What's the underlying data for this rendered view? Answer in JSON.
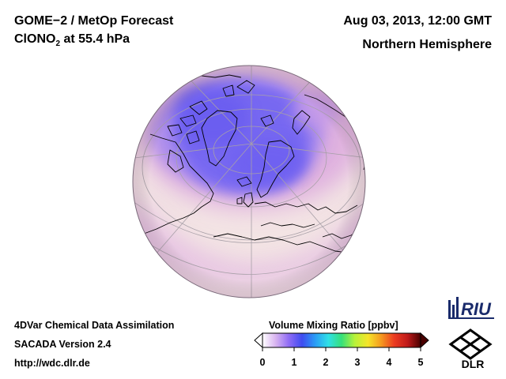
{
  "header": {
    "title": "GOME−2 / MetOp Forecast",
    "species_main": "ClONO",
    "species_sub": "2",
    "species_level": " at 55.4 hPa",
    "datetime": "Aug 03, 2013, 12:00 GMT",
    "region": "Northern Hemisphere"
  },
  "footer": {
    "line1": "4DVar Chemical Data Assimilation",
    "line2": "SACADA Version 2.4",
    "url": "http://wdc.dlr.de"
  },
  "colorbar": {
    "title": "Volume Mixing Ratio [ppbv]",
    "ticks": [
      "0",
      "1",
      "2",
      "3",
      "4",
      "5"
    ],
    "min": 0,
    "max": 5,
    "colors": [
      "#ffffff",
      "#d8b4f0",
      "#8f6cf5",
      "#3f4cf0",
      "#2a9cf5",
      "#2fe0e6",
      "#36e07a",
      "#b7f23a",
      "#f5e52a",
      "#f59a1f",
      "#ec3b20",
      "#c01a1a",
      "#4a0000"
    ]
  },
  "logos": {
    "riu": "RIU",
    "dlr": "DLR"
  },
  "map": {
    "projection": "orthographic",
    "background_color": "#f3e4e4",
    "low_color": "#7a6ef3",
    "mid_color": "#d9a4dc",
    "grid_color": "#a8a0a8",
    "coast_color": "#000000"
  }
}
